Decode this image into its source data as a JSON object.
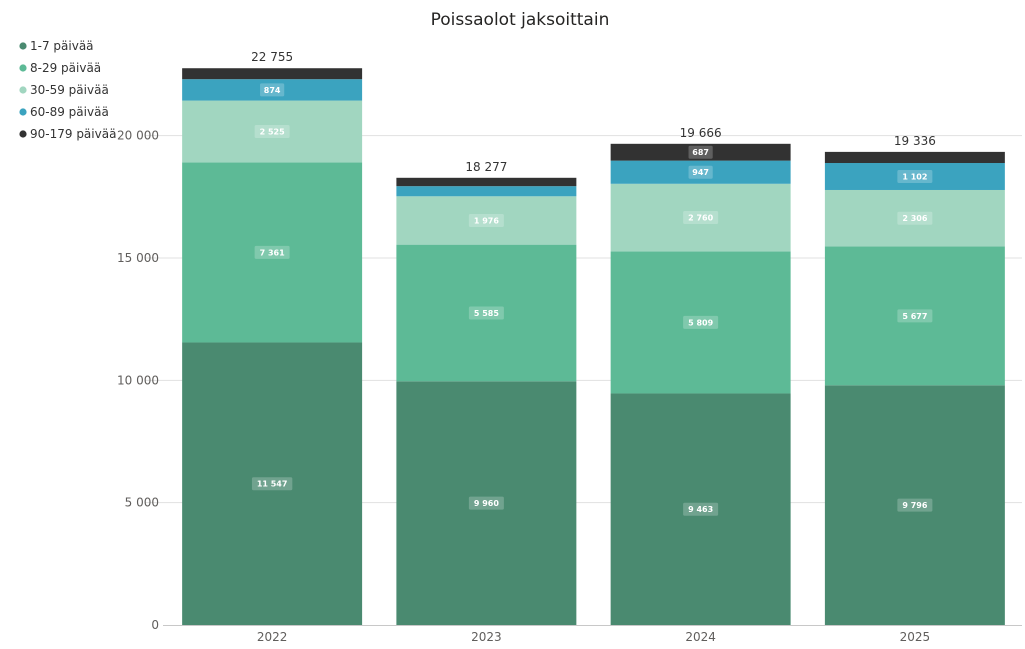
{
  "chart_data": {
    "type": "bar",
    "stacked": true,
    "title": "Poissaolot jaksoittain",
    "categories": [
      "2022",
      "2023",
      "2024",
      "2025"
    ],
    "series": [
      {
        "name": "1-7 päivää",
        "color": "#4a8a70",
        "values": [
          11547,
          9960,
          9463,
          9796
        ]
      },
      {
        "name": "8-29 päivää",
        "color": "#5dba96",
        "values": [
          7361,
          5585,
          5809,
          5677
        ]
      },
      {
        "name": "30-59 päivää",
        "color": "#a1d6c0",
        "values": [
          2525,
          1976,
          2760,
          2306
        ]
      },
      {
        "name": "60-89 päivää",
        "color": "#3ba3bf",
        "values": [
          874,
          414,
          947,
          1102
        ]
      },
      {
        "name": "90-179 päivää",
        "color": "#323232",
        "values": [
          448,
          342,
          687,
          455
        ]
      }
    ],
    "segment_labels": [
      [
        "11 547",
        "7 361",
        "2 525",
        "874",
        ""
      ],
      [
        "9 960",
        "5 585",
        "1 976",
        "",
        ""
      ],
      [
        "9 463",
        "5 809",
        "2 760",
        "947",
        "687"
      ],
      [
        "9 796",
        "5 677",
        "2 306",
        "1 102",
        ""
      ]
    ],
    "totals": [
      "22 755",
      "18 277",
      "19 666",
      "19 336"
    ],
    "ylim": [
      0,
      23500
    ],
    "yticks": [
      0,
      5000,
      10000,
      15000,
      20000
    ],
    "ytick_labels": [
      "0",
      "5 000",
      "10 000",
      "15 000",
      "20 000"
    ],
    "grid": true,
    "legend_position": "top-left"
  }
}
